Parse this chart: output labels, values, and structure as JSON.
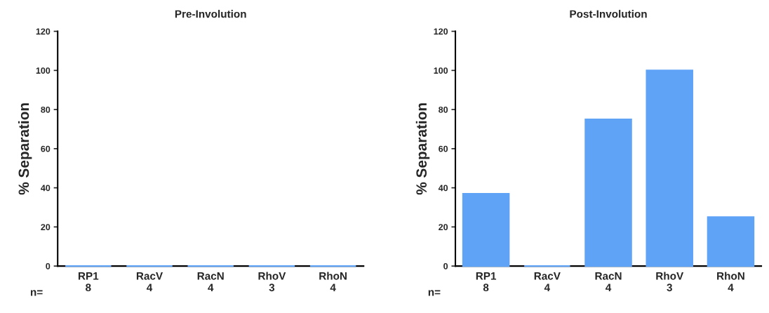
{
  "chart_data": [
    {
      "type": "bar",
      "title": "Pre-Involution",
      "ylabel": "% Separation",
      "categories": [
        "RP1\n8",
        "RacV\n4",
        "RacN\n4",
        "RhoV\n3",
        "RhoN\n4"
      ],
      "values": [
        0,
        0,
        0,
        0,
        0
      ],
      "color": "#5fa3f7",
      "ylim": [
        0,
        120
      ],
      "yticks": [
        0,
        20,
        40,
        60,
        80,
        100,
        120
      ],
      "annotations": [
        "n="
      ]
    },
    {
      "type": "bar",
      "title": "Post-Involution",
      "ylabel": "% Separation",
      "categories": [
        "RP1\n8",
        "RacV\n4",
        "RacN\n4",
        "RhoV\n3",
        "RhoN\n4"
      ],
      "values": [
        37,
        0,
        75,
        100,
        25
      ],
      "color": "#5fa3f7",
      "ylim": [
        0,
        120
      ],
      "yticks": [
        0,
        20,
        40,
        60,
        80,
        100,
        120
      ],
      "annotations": [
        "n="
      ]
    }
  ]
}
